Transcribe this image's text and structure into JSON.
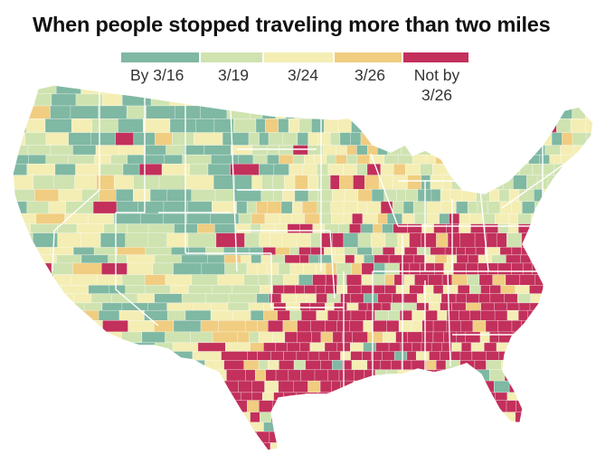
{
  "title": "When people stopped traveling more than two miles",
  "legend": {
    "items": [
      {
        "label": "By 3/16",
        "color": "#7fb8a3"
      },
      {
        "label": "3/19",
        "color": "#cfe3b0"
      },
      {
        "label": "3/24",
        "color": "#f4eeb4"
      },
      {
        "label": "3/26",
        "color": "#f0cd80"
      },
      {
        "label": "Not by\n3/26",
        "color": "#c2305b"
      }
    ]
  },
  "map": {
    "region": "Contiguous United States, by county",
    "colors": {
      "by_3_16": "#7fb8a3",
      "by_3_19": "#cfe3b0",
      "by_3_24": "#f4eeb4",
      "by_3_26": "#f0cd80",
      "not_by_3_26": "#c2305b",
      "borders": "#ffffff"
    }
  }
}
